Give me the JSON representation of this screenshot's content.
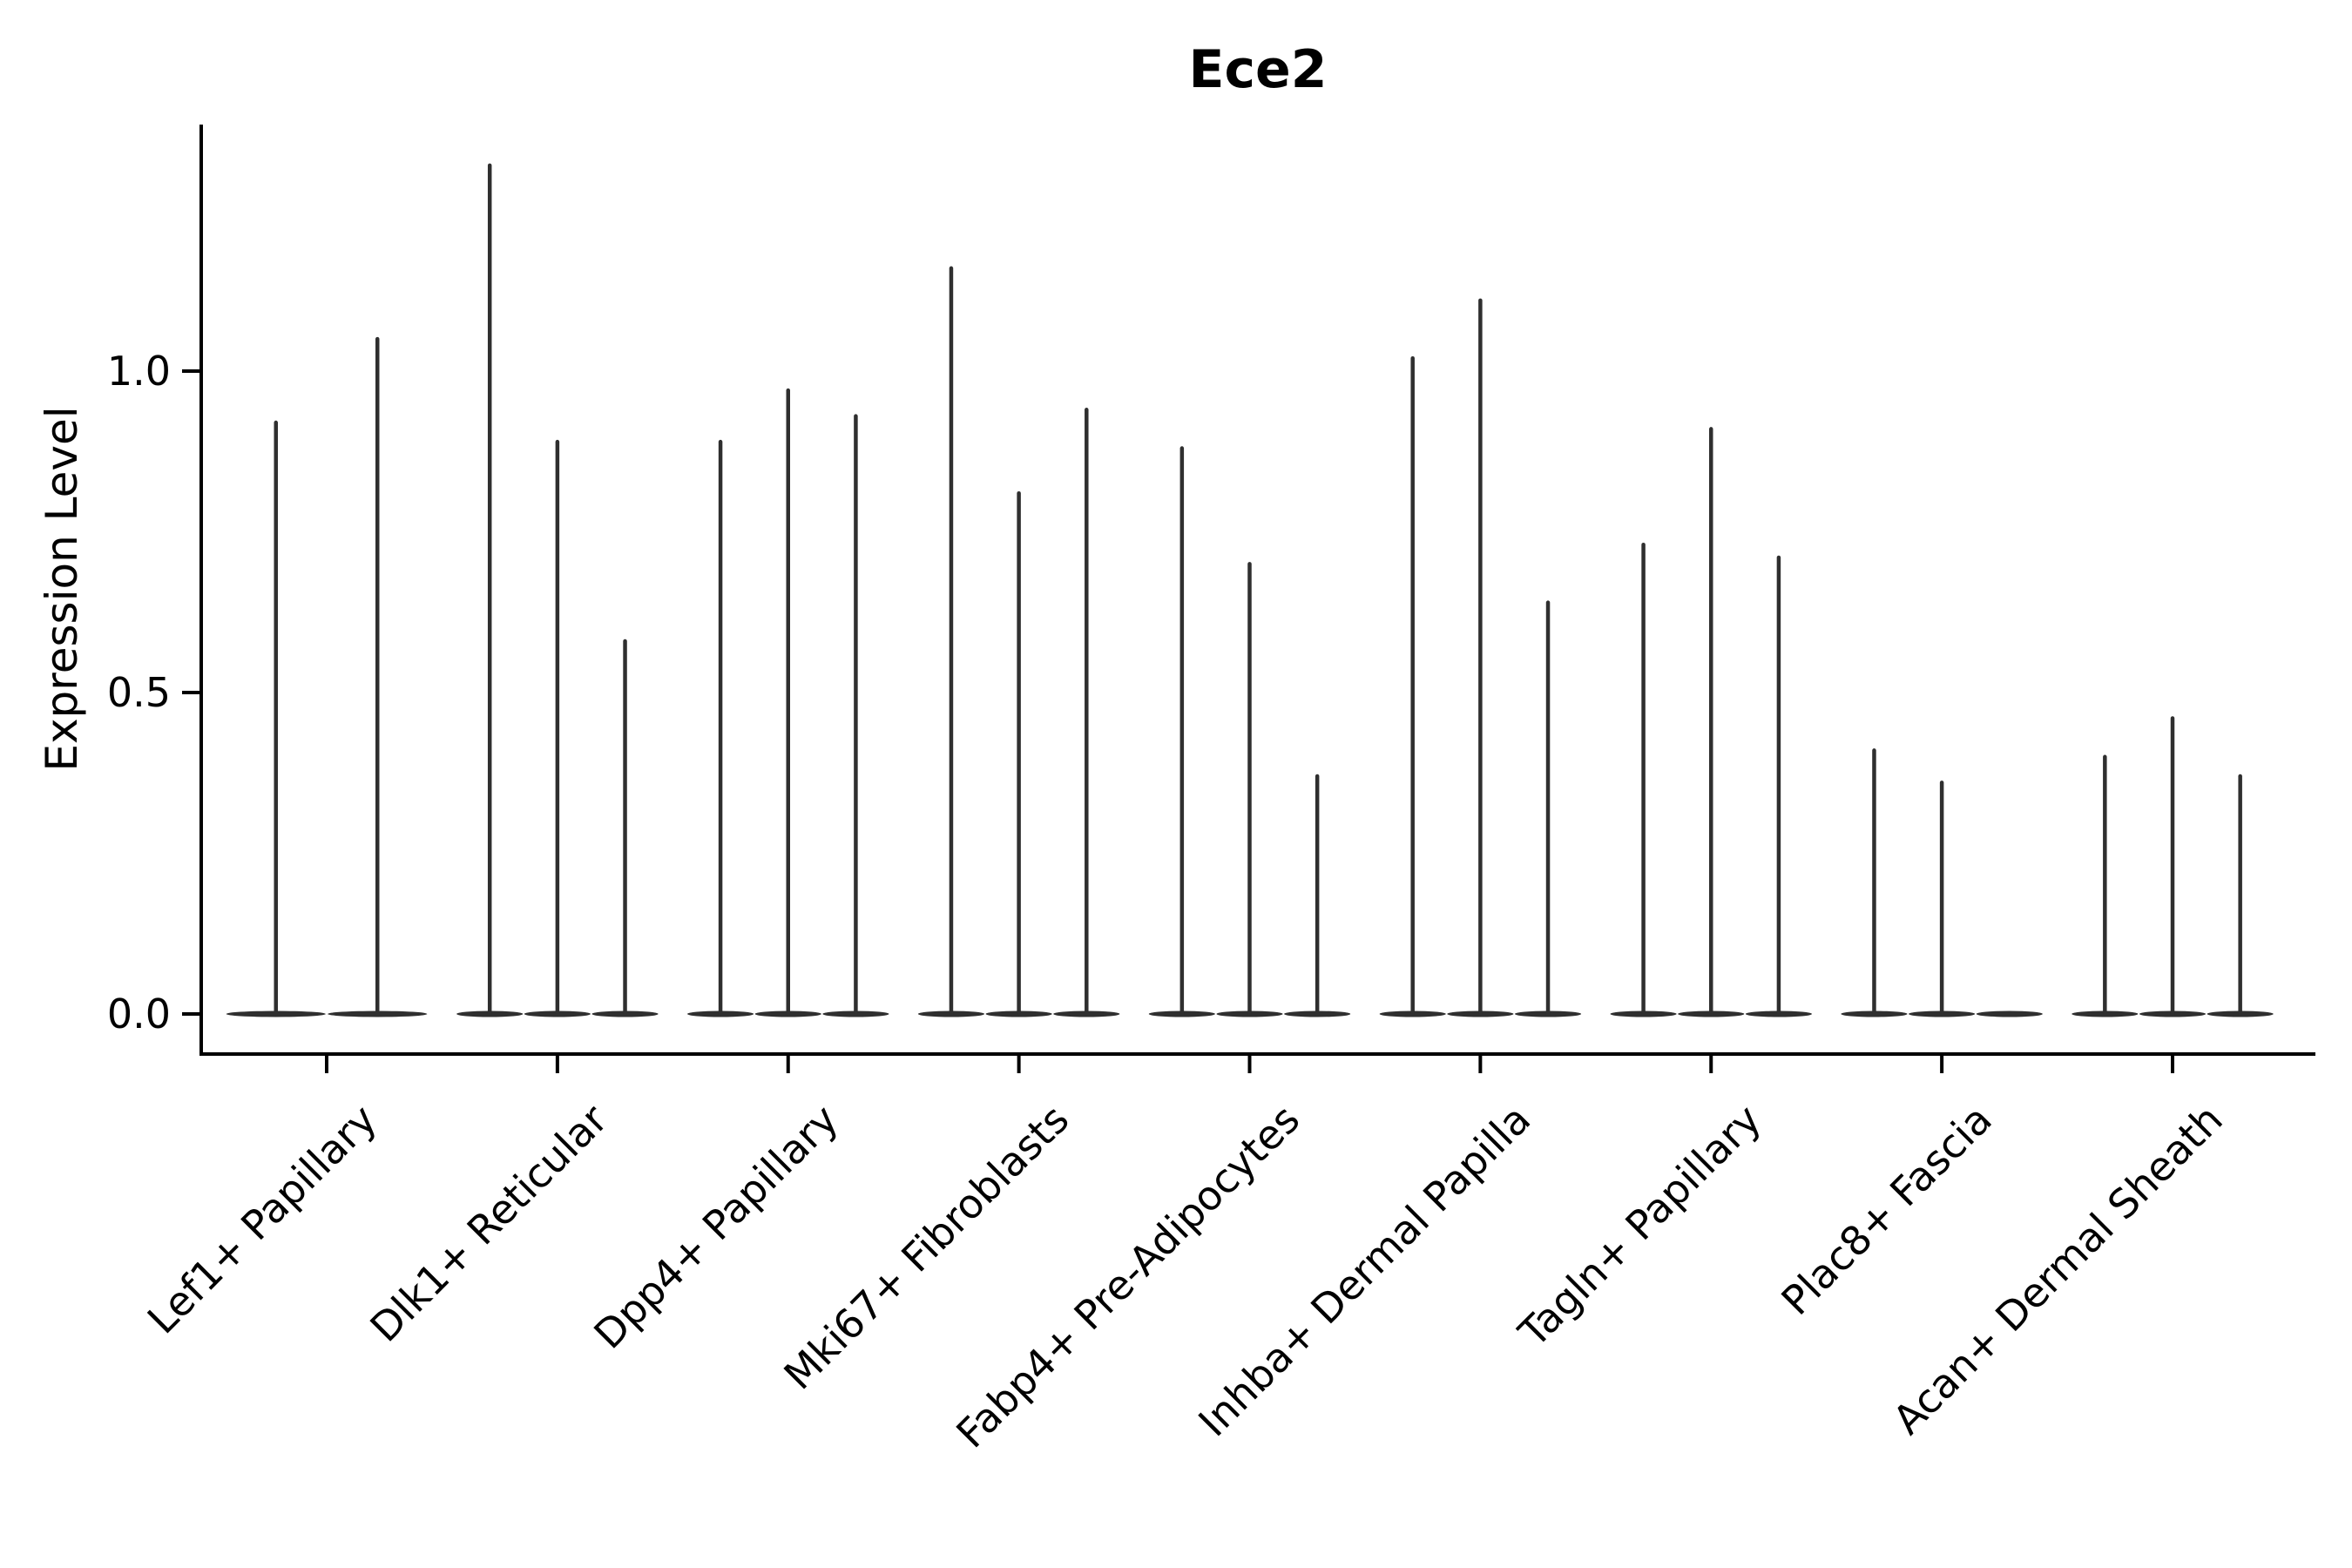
{
  "title": "Ece2",
  "chart_data": {
    "type": "violin",
    "title": "Ece2",
    "xlabel": "",
    "ylabel": "Expression Level",
    "ylim": [
      -0.06,
      1.38
    ],
    "grid": false,
    "legend": null,
    "yticks": [
      {
        "label": "0.0",
        "value": 0.0
      },
      {
        "label": "0.5",
        "value": 0.5
      },
      {
        "label": "1.0",
        "value": 1.0
      }
    ],
    "categories": [
      "Lef1+ Papillary",
      "Dlk1+ Reticular",
      "Dpp4+ Papillary",
      "Mki67+ Fibroblasts",
      "Fabp4+ Pre-Adipocytes",
      "Inhba+ Dermal Papilla",
      "Tagln+ Papillary",
      "Plac8+ Fascia",
      "Acan+ Dermal Sheath"
    ],
    "groups": [
      {
        "label": "Lef1+ Papillary",
        "violin_max_values": [
          0.92,
          1.05
        ]
      },
      {
        "label": "Dlk1+ Reticular",
        "violin_max_values": [
          1.32,
          0.89,
          0.58
        ]
      },
      {
        "label": "Dpp4+ Papillary",
        "violin_max_values": [
          0.89,
          0.97,
          0.93
        ]
      },
      {
        "label": "Mki67+ Fibroblasts",
        "violin_max_values": [
          1.16,
          0.81,
          0.94
        ]
      },
      {
        "label": "Fabp4+ Pre-Adipocytes",
        "violin_max_values": [
          0.88,
          0.7,
          0.37
        ]
      },
      {
        "label": "Inhba+ Dermal Papilla",
        "violin_max_values": [
          1.02,
          1.11,
          0.64
        ]
      },
      {
        "label": "Tagln+ Papillary",
        "violin_max_values": [
          0.73,
          0.91,
          0.71
        ]
      },
      {
        "label": "Plac8+ Fascia",
        "violin_max_values": [
          0.41,
          0.36,
          0.0
        ]
      },
      {
        "label": "Acan+ Dermal Sheath",
        "violin_max_values": [
          0.4,
          0.46,
          0.37
        ]
      }
    ],
    "colors": {
      "violin": "#2f2f2f",
      "axis": "#000000",
      "text": "#000000",
      "background": "#ffffff"
    }
  }
}
